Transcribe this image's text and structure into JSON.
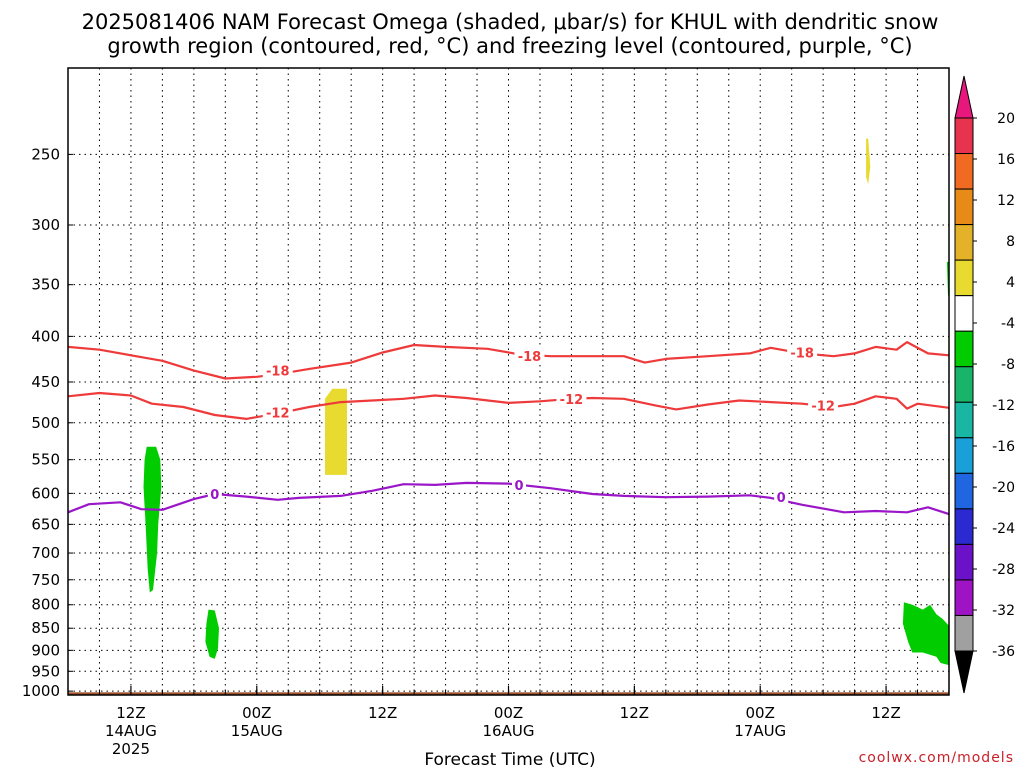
{
  "chart_data": {
    "type": "contour",
    "title": [
      "2025081406 NAM Forecast Omega (shaded, μbar/s) for KHUL with dendritic snow",
      "growth region (contoured, red, °C) and freezing level (contoured, purple, °C)"
    ],
    "xlabel": "Forecast Time (UTC)",
    "credit": "coolwx.com/models",
    "x_ticks": [
      {
        "h": 6,
        "label": "12Z",
        "sub": "14AUG",
        "sub2": "2025"
      },
      {
        "h": 18,
        "label": "00Z",
        "sub": "15AUG",
        "sub2": ""
      },
      {
        "h": 30,
        "label": "12Z",
        "sub": "",
        "sub2": ""
      },
      {
        "h": 42,
        "label": "00Z",
        "sub": "16AUG",
        "sub2": ""
      },
      {
        "h": 54,
        "label": "12Z",
        "sub": "",
        "sub2": ""
      },
      {
        "h": 66,
        "label": "00Z",
        "sub": "17AUG",
        "sub2": ""
      },
      {
        "h": 78,
        "label": "12Z",
        "sub": "",
        "sub2": ""
      }
    ],
    "xlim_hours": [
      0,
      84
    ],
    "y_ticks": [
      250,
      300,
      350,
      400,
      450,
      500,
      550,
      600,
      650,
      700,
      750,
      800,
      850,
      900,
      950,
      1000
    ],
    "ylim_hpa": [
      200,
      1010
    ],
    "y_scale": "log",
    "grid": "dotted",
    "colorbar": {
      "labels": [
        "20",
        "16",
        "12",
        "8",
        "4",
        "-4",
        "-8",
        "-12",
        "-16",
        "-20",
        "-24",
        "-28",
        "-32",
        "-36"
      ],
      "colors": [
        "#e8334f",
        "#f06a22",
        "#e88a17",
        "#e3b228",
        "#e8da2f",
        "#ffffff",
        "#00cc00",
        "#18b46a",
        "#19b6a4",
        "#1aa0d8",
        "#1f66e0",
        "#2a2ad0",
        "#6b12c8",
        "#9e14c4",
        "#a0a0a0"
      ],
      "top_arrow": "#e8177c",
      "bottom_arrow": "#000000"
    },
    "series": [
      {
        "name": "-18",
        "color": "#ee3a3a",
        "points": [
          [
            0,
            411
          ],
          [
            3,
            414
          ],
          [
            6,
            420
          ],
          [
            9,
            426
          ],
          [
            12,
            437
          ],
          [
            15,
            446
          ],
          [
            18,
            444
          ],
          [
            20,
            441
          ],
          [
            23,
            435
          ],
          [
            27,
            428
          ],
          [
            30,
            417
          ],
          [
            33,
            409
          ],
          [
            36,
            411
          ],
          [
            40,
            413
          ],
          [
            43,
            419
          ],
          [
            46,
            421
          ],
          [
            50,
            421
          ],
          [
            53,
            421
          ],
          [
            55,
            428
          ],
          [
            57,
            424
          ],
          [
            61,
            421
          ],
          [
            65,
            418
          ],
          [
            67,
            412
          ],
          [
            70,
            418
          ],
          [
            73,
            421
          ],
          [
            75,
            418
          ],
          [
            77,
            411
          ],
          [
            79,
            414
          ],
          [
            80,
            406
          ],
          [
            82,
            418
          ],
          [
            84,
            420
          ]
        ],
        "labels": [
          {
            "h": 20,
            "p": 437
          },
          {
            "h": 44,
            "p": 421
          },
          {
            "h": 70,
            "p": 417
          }
        ]
      },
      {
        "name": "-12",
        "color": "#ee3a3a",
        "points": [
          [
            0,
            467
          ],
          [
            3,
            463
          ],
          [
            6,
            466
          ],
          [
            8,
            476
          ],
          [
            11,
            480
          ],
          [
            14,
            490
          ],
          [
            17,
            495
          ],
          [
            20,
            488
          ],
          [
            23,
            480
          ],
          [
            26,
            474
          ],
          [
            29,
            472
          ],
          [
            32,
            470
          ],
          [
            35,
            466
          ],
          [
            38,
            469
          ],
          [
            42,
            475
          ],
          [
            45,
            473
          ],
          [
            48,
            470
          ],
          [
            50,
            469
          ],
          [
            53,
            470
          ],
          [
            56,
            478
          ],
          [
            58,
            483
          ],
          [
            61,
            477
          ],
          [
            64,
            472
          ],
          [
            67,
            474
          ],
          [
            70,
            476
          ],
          [
            73,
            480
          ],
          [
            75,
            476
          ],
          [
            77,
            467
          ],
          [
            79,
            470
          ],
          [
            80,
            482
          ],
          [
            81,
            476
          ],
          [
            84,
            481
          ]
        ],
        "labels": [
          {
            "h": 20,
            "p": 487
          },
          {
            "h": 48,
            "p": 470
          },
          {
            "h": 72,
            "p": 478
          }
        ]
      },
      {
        "name": "0",
        "color": "#9a16c8",
        "points": [
          [
            0,
            630
          ],
          [
            2,
            617
          ],
          [
            5,
            614
          ],
          [
            7,
            625
          ],
          [
            9,
            626
          ],
          [
            12,
            609
          ],
          [
            14,
            601
          ],
          [
            17,
            605
          ],
          [
            20,
            610
          ],
          [
            22,
            607
          ],
          [
            26,
            604
          ],
          [
            29,
            596
          ],
          [
            32,
            586
          ],
          [
            35,
            587
          ],
          [
            38,
            584
          ],
          [
            42,
            585
          ],
          [
            46,
            592
          ],
          [
            50,
            601
          ],
          [
            53,
            604
          ],
          [
            57,
            606
          ],
          [
            61,
            605
          ],
          [
            65,
            603
          ],
          [
            67,
            607
          ],
          [
            70,
            618
          ],
          [
            74,
            630
          ],
          [
            77,
            628
          ],
          [
            80,
            630
          ],
          [
            82,
            622
          ],
          [
            84,
            633
          ]
        ],
        "labels": [
          {
            "h": 14,
            "p": 601
          },
          {
            "h": 43,
            "p": 587
          },
          {
            "h": 68,
            "p": 606
          }
        ]
      }
    ],
    "shaded_areas": [
      {
        "value": "-4 to -8",
        "color": "#00cc00",
        "points": [
          [
            7.5,
            532
          ],
          [
            8.4,
            532
          ],
          [
            8.8,
            550
          ],
          [
            8.9,
            590
          ],
          [
            8.6,
            650
          ],
          [
            8.5,
            700
          ],
          [
            8.1,
            770
          ],
          [
            7.8,
            775
          ],
          [
            7.6,
            730
          ],
          [
            7.4,
            650
          ],
          [
            7.2,
            590
          ],
          [
            7.3,
            550
          ]
        ]
      },
      {
        "value": "-4 to -8",
        "color": "#00cc00",
        "points": [
          [
            13.4,
            810
          ],
          [
            14.0,
            812
          ],
          [
            14.4,
            850
          ],
          [
            14.3,
            895
          ],
          [
            14.0,
            920
          ],
          [
            13.5,
            915
          ],
          [
            13.1,
            880
          ],
          [
            13.2,
            840
          ]
        ]
      },
      {
        "value": "-4 to -8",
        "color": "#00cc00",
        "points": [
          [
            79.7,
            795
          ],
          [
            80.5,
            800
          ],
          [
            81.5,
            810
          ],
          [
            82.2,
            800
          ],
          [
            82.8,
            820
          ],
          [
            83.4,
            830
          ],
          [
            84,
            845
          ],
          [
            84,
            935
          ],
          [
            83.2,
            930
          ],
          [
            82.8,
            915
          ],
          [
            81.5,
            905
          ],
          [
            80.5,
            905
          ],
          [
            80.1,
            880
          ],
          [
            79.6,
            840
          ]
        ]
      },
      {
        "value": "-4 to -8",
        "color": "#00cc00",
        "points": [
          [
            83.8,
            330
          ],
          [
            84,
            330
          ],
          [
            84,
            360
          ],
          [
            83.9,
            360
          ]
        ]
      },
      {
        "value": "4 to 8",
        "color": "#e8da2f",
        "points": [
          [
            24.5,
            470
          ],
          [
            25.2,
            458
          ],
          [
            26.6,
            458
          ],
          [
            26.6,
            572
          ],
          [
            24.5,
            572
          ]
        ]
      },
      {
        "value": "4 to 8",
        "color": "#e8da2f",
        "points": [
          [
            76.1,
            240
          ],
          [
            76.3,
            240
          ],
          [
            76.5,
            258
          ],
          [
            76.3,
            270
          ],
          [
            76.1,
            265
          ]
        ]
      }
    ],
    "terrain": {
      "color": "#a0522d",
      "top_hpa": 1003
    }
  }
}
